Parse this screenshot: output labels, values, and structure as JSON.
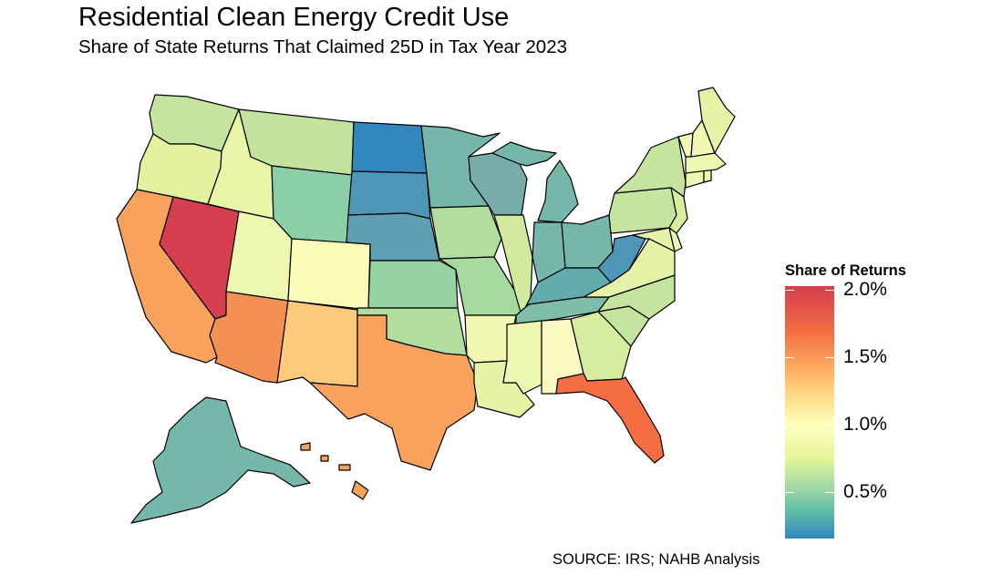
{
  "title": "Residential Clean Energy Credit Use",
  "subtitle": "Share of State Returns That Claimed 25D in Tax Year 2023",
  "source": "SOURCE: IRS; NAHB Analysis",
  "legend": {
    "title": "Share of Returns",
    "ticks": [
      "2.0%",
      "1.5%",
      "1.0%",
      "0.5%"
    ],
    "colors": [
      "#d53e4f",
      "#f46d43",
      "#fdae61",
      "#fee08b",
      "#ffffbf",
      "#e6f598",
      "#abdda4",
      "#66c2a5",
      "#3288bd"
    ]
  },
  "states": [
    {
      "name": "WA",
      "color": "#c5e49d"
    },
    {
      "name": "OR",
      "color": "#e2f29f"
    },
    {
      "name": "CA",
      "color": "#f9a25e"
    },
    {
      "name": "NV",
      "color": "#d53e4f"
    },
    {
      "name": "ID",
      "color": "#eaf6a7"
    },
    {
      "name": "MT",
      "color": "#c3e39c"
    },
    {
      "name": "WY",
      "color": "#8acfa5"
    },
    {
      "name": "UT",
      "color": "#eef7b0"
    },
    {
      "name": "AZ",
      "color": "#f68f52"
    },
    {
      "name": "CO",
      "color": "#fdfbb8"
    },
    {
      "name": "NM",
      "color": "#fdc97b"
    },
    {
      "name": "ND",
      "color": "#3288bd"
    },
    {
      "name": "SD",
      "color": "#4d96b9"
    },
    {
      "name": "NE",
      "color": "#5e9fb5"
    },
    {
      "name": "KS",
      "color": "#97d4a4"
    },
    {
      "name": "OK",
      "color": "#b1de9f"
    },
    {
      "name": "TX",
      "color": "#f9a25e"
    },
    {
      "name": "MN",
      "color": "#76b7ab"
    },
    {
      "name": "IA",
      "color": "#b1de9f"
    },
    {
      "name": "MO",
      "color": "#a6da9f"
    },
    {
      "name": "AR",
      "color": "#f0f8b4"
    },
    {
      "name": "LA",
      "color": "#e4f3a5"
    },
    {
      "name": "WI",
      "color": "#77acaa"
    },
    {
      "name": "IL",
      "color": "#d2ea9d"
    },
    {
      "name": "MI",
      "color": "#76b7ab"
    },
    {
      "name": "IN",
      "color": "#76b7ab"
    },
    {
      "name": "OH",
      "color": "#76b7ab"
    },
    {
      "name": "KY",
      "color": "#63acae"
    },
    {
      "name": "TN",
      "color": "#7dbda9"
    },
    {
      "name": "MS",
      "color": "#eef7b0"
    },
    {
      "name": "AL",
      "color": "#fcf9c0"
    },
    {
      "name": "GA",
      "color": "#d7ec9e"
    },
    {
      "name": "FL",
      "color": "#f46d43"
    },
    {
      "name": "SC",
      "color": "#c5e49d"
    },
    {
      "name": "NC",
      "color": "#c5e49d"
    },
    {
      "name": "VA",
      "color": "#e4f3a5"
    },
    {
      "name": "WV",
      "color": "#4d96b9"
    },
    {
      "name": "PA",
      "color": "#c5e49d"
    },
    {
      "name": "NY",
      "color": "#c5e49d"
    },
    {
      "name": "NJ",
      "color": "#d9ed9e"
    },
    {
      "name": "DE",
      "color": "#eef7b0"
    },
    {
      "name": "MD",
      "color": "#e4f3a5"
    },
    {
      "name": "CT",
      "color": "#eef7b0"
    },
    {
      "name": "RI",
      "color": "#f0f8b4"
    },
    {
      "name": "MA",
      "color": "#eef7b0"
    },
    {
      "name": "VT",
      "color": "#f4f9b8"
    },
    {
      "name": "NH",
      "color": "#f0f8b4"
    },
    {
      "name": "ME",
      "color": "#e4f3a5"
    },
    {
      "name": "AK",
      "color": "#76b7ab"
    },
    {
      "name": "HI",
      "color": "#f8a25a"
    }
  ]
}
